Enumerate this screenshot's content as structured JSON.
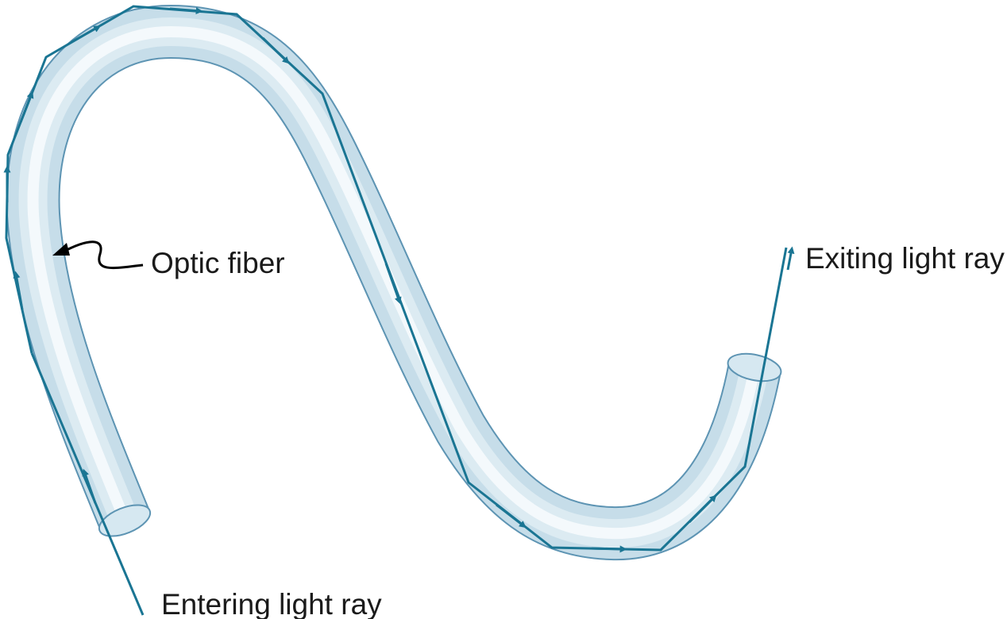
{
  "labels": {
    "optic_fiber": "Optic fiber",
    "exiting_ray": "Exiting light ray",
    "entering_ray": "Entering light ray"
  },
  "colors": {
    "fiber_fill": "#c9dfea",
    "fiber_highlight": "#f4f9fc",
    "fiber_outline": "#5d94b3",
    "ray": "#1a7593",
    "pointer": "#000000",
    "background": "#ffffff"
  },
  "elements": {
    "fiber": "optic-fiber-tube",
    "ray": "light-ray-zigzag"
  }
}
